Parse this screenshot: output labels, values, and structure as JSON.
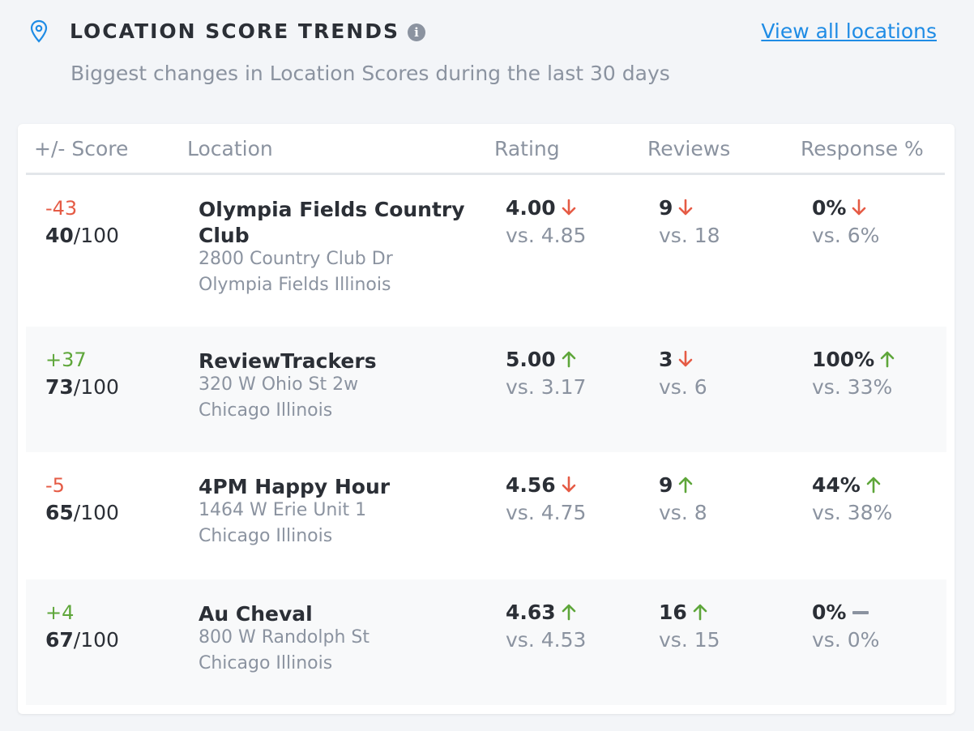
{
  "header": {
    "title": "LOCATION SCORE TRENDS",
    "view_all": "View all locations",
    "subtitle": "Biggest changes in Location Scores during the last 30 days"
  },
  "columns": {
    "score": "+/- Score",
    "location": "Location",
    "rating": "Rating",
    "reviews": "Reviews",
    "response": "Response %"
  },
  "rows": [
    {
      "delta": "-43",
      "score": "40",
      "out_of": "/100",
      "name": "Olympia Fields Country Club",
      "address": "2800 Country Club Dr",
      "city": "Olympia Fields Illinois",
      "rating": "4.00",
      "rating_prev": "vs. 4.85",
      "rating_trend": "down",
      "reviews": "9",
      "reviews_prev": "vs. 18",
      "reviews_trend": "down",
      "response": "0%",
      "response_prev": "vs. 6%",
      "response_trend": "down"
    },
    {
      "delta": "+37",
      "score": "73",
      "out_of": "/100",
      "name": "ReviewTrackers",
      "address": "320 W Ohio St 2w",
      "city": "Chicago Illinois",
      "rating": "5.00",
      "rating_prev": "vs. 3.17",
      "rating_trend": "up",
      "reviews": "3",
      "reviews_prev": "vs. 6",
      "reviews_trend": "down",
      "response": "100%",
      "response_prev": "vs. 33%",
      "response_trend": "up"
    },
    {
      "delta": "-5",
      "score": "65",
      "out_of": "/100",
      "name": "4PM Happy Hour",
      "address": "1464 W Erie Unit 1",
      "city": "Chicago Illinois",
      "rating": "4.56",
      "rating_prev": "vs. 4.75",
      "rating_trend": "down",
      "reviews": "9",
      "reviews_prev": "vs. 8",
      "reviews_trend": "up",
      "response": "44%",
      "response_prev": "vs. 38%",
      "response_trend": "up"
    },
    {
      "delta": "+4",
      "score": "67",
      "out_of": "/100",
      "name": "Au Cheval",
      "address": "800 W Randolph St",
      "city": "Chicago Illinois",
      "rating": "4.63",
      "rating_prev": "vs. 4.53",
      "rating_trend": "up",
      "reviews": "16",
      "reviews_prev": "vs. 15",
      "reviews_trend": "up",
      "response": "0%",
      "response_prev": "vs. 0%",
      "response_trend": "flat"
    }
  ],
  "colors": {
    "up": "#5ea63a",
    "down": "#e55b45",
    "flat": "#8b93a0",
    "link": "#1f8ce5"
  },
  "icons": {
    "pin": "map-pin-icon",
    "info": "info-icon",
    "up": "arrow-up-icon",
    "down": "arrow-down-icon",
    "flat": "dash-icon"
  }
}
